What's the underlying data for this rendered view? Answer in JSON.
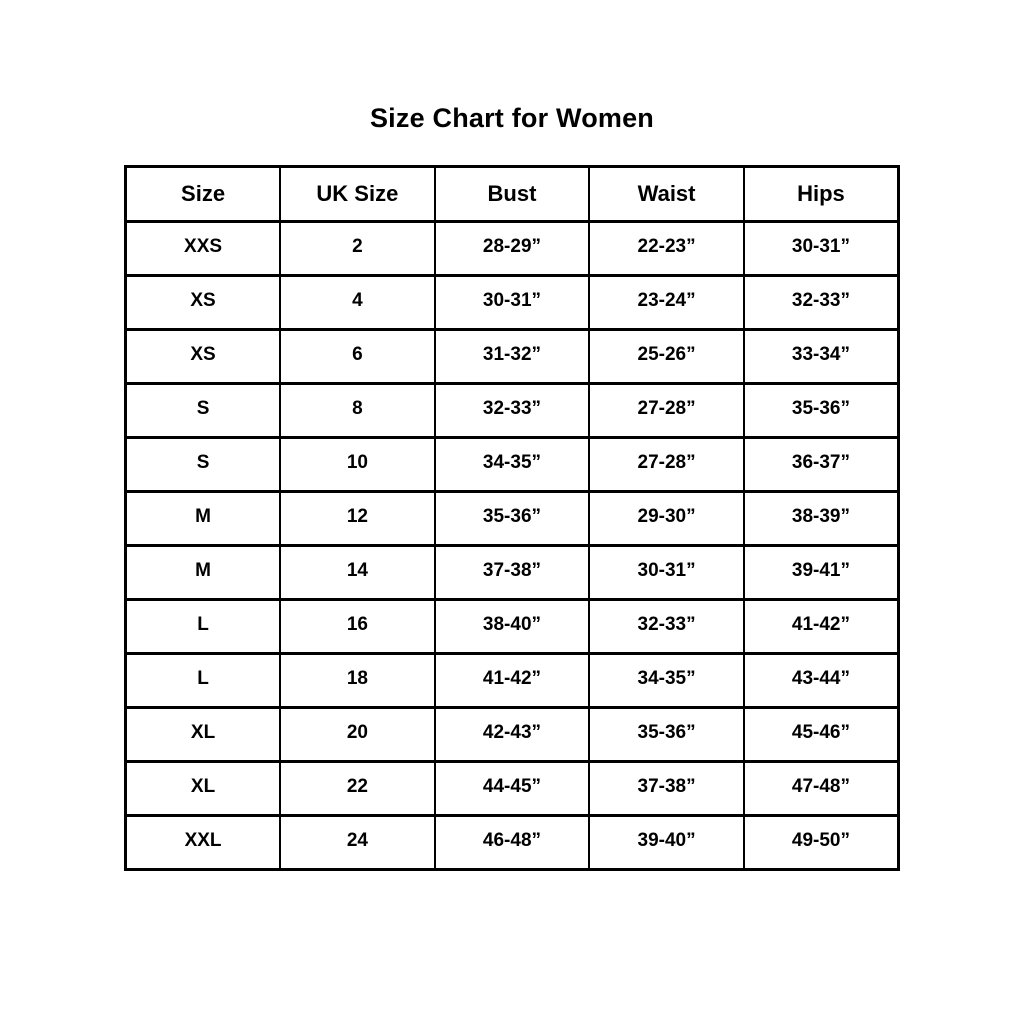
{
  "page": {
    "title": "Size Chart for Women"
  },
  "table": {
    "columns": [
      {
        "key": "size",
        "label": "Size"
      },
      {
        "key": "uk",
        "label": "UK Size"
      },
      {
        "key": "bust",
        "label": "Bust"
      },
      {
        "key": "waist",
        "label": "Waist"
      },
      {
        "key": "hips",
        "label": "Hips"
      }
    ],
    "rows": [
      {
        "size": "XXS",
        "uk": "2",
        "bust": "28-29”",
        "waist": "22-23”",
        "hips": "30-31”"
      },
      {
        "size": "XS",
        "uk": "4",
        "bust": "30-31”",
        "waist": "23-24”",
        "hips": "32-33”"
      },
      {
        "size": "XS",
        "uk": "6",
        "bust": "31-32”",
        "waist": "25-26”",
        "hips": "33-34”"
      },
      {
        "size": "S",
        "uk": "8",
        "bust": "32-33”",
        "waist": "27-28”",
        "hips": "35-36”"
      },
      {
        "size": "S",
        "uk": "10",
        "bust": "34-35”",
        "waist": "27-28”",
        "hips": "36-37”"
      },
      {
        "size": "M",
        "uk": "12",
        "bust": "35-36”",
        "waist": "29-30”",
        "hips": "38-39”"
      },
      {
        "size": "M",
        "uk": "14",
        "bust": "37-38”",
        "waist": "30-31”",
        "hips": "39-41”"
      },
      {
        "size": "L",
        "uk": "16",
        "bust": "38-40”",
        "waist": "32-33”",
        "hips": "41-42”"
      },
      {
        "size": "L",
        "uk": "18",
        "bust": "41-42”",
        "waist": "34-35”",
        "hips": "43-44”"
      },
      {
        "size": "XL",
        "uk": "20",
        "bust": "42-43”",
        "waist": "35-36”",
        "hips": "45-46”"
      },
      {
        "size": "XL",
        "uk": "22",
        "bust": "44-45”",
        "waist": "37-38”",
        "hips": "47-48”"
      },
      {
        "size": "XXL",
        "uk": "24",
        "bust": "46-48”",
        "waist": "39-40”",
        "hips": "49-50”"
      }
    ]
  },
  "chart_data": {
    "type": "table",
    "title": "Size Chart for Women",
    "columns": [
      "Size",
      "UK Size",
      "Bust",
      "Waist",
      "Hips"
    ],
    "rows": [
      [
        "XXS",
        "2",
        "28-29”",
        "22-23”",
        "30-31”"
      ],
      [
        "XS",
        "4",
        "30-31”",
        "23-24”",
        "32-33”"
      ],
      [
        "XS",
        "6",
        "31-32”",
        "25-26”",
        "33-34”"
      ],
      [
        "S",
        "8",
        "32-33”",
        "27-28”",
        "35-36”"
      ],
      [
        "S",
        "10",
        "34-35”",
        "27-28”",
        "36-37”"
      ],
      [
        "M",
        "12",
        "35-36”",
        "29-30”",
        "38-39”"
      ],
      [
        "M",
        "14",
        "37-38”",
        "30-31”",
        "39-41”"
      ],
      [
        "L",
        "16",
        "38-40”",
        "32-33”",
        "41-42”"
      ],
      [
        "L",
        "18",
        "41-42”",
        "34-35”",
        "43-44”"
      ],
      [
        "XL",
        "20",
        "42-43”",
        "35-36”",
        "45-46”"
      ],
      [
        "XL",
        "22",
        "44-45”",
        "37-38”",
        "47-48”"
      ],
      [
        "XXL",
        "24",
        "46-48”",
        "39-40”",
        "49-50”"
      ]
    ],
    "text_color": "#000000",
    "border_color": "#000000",
    "background_color": "#ffffff"
  }
}
